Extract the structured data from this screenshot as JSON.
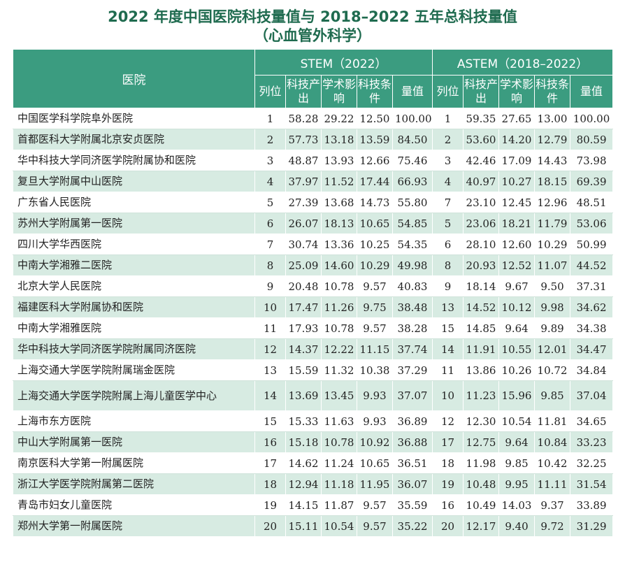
{
  "title": {
    "line1": "2022 年度中国医院科技量值与 2018–2022 五年总科技量值",
    "line2": "（心血管外科学）"
  },
  "header": {
    "hospital": "医院",
    "stem_group": "STEM（2022）",
    "astem_group": "ASTEM（2018–2022）",
    "cols": [
      "列位",
      "科技产出",
      "学术影响",
      "科技条件",
      "量值"
    ]
  },
  "colors": {
    "header_bg": "#3b9c80",
    "stripe": "#d7ebe2",
    "title": "#1f6b4f"
  },
  "rows": [
    {
      "name": "中国医学科学院阜外医院",
      "s": [
        "1",
        "58.28",
        "29.22",
        "12.50",
        "100.00"
      ],
      "a": [
        "1",
        "59.35",
        "27.65",
        "13.00",
        "100.00"
      ]
    },
    {
      "name": "首都医科大学附属北京安贞医院",
      "s": [
        "2",
        "57.73",
        "13.18",
        "13.59",
        "84.50"
      ],
      "a": [
        "2",
        "53.60",
        "14.20",
        "12.79",
        "80.59"
      ]
    },
    {
      "name": "华中科技大学同济医学院附属协和医院",
      "s": [
        "3",
        "48.87",
        "13.93",
        "12.66",
        "75.46"
      ],
      "a": [
        "3",
        "42.46",
        "17.09",
        "14.43",
        "73.98"
      ]
    },
    {
      "name": "复旦大学附属中山医院",
      "s": [
        "4",
        "37.97",
        "11.52",
        "17.44",
        "66.93"
      ],
      "a": [
        "4",
        "40.97",
        "10.27",
        "18.15",
        "69.39"
      ]
    },
    {
      "name": "广东省人民医院",
      "s": [
        "5",
        "27.39",
        "13.68",
        "14.73",
        "55.80"
      ],
      "a": [
        "7",
        "23.10",
        "12.45",
        "12.96",
        "48.51"
      ]
    },
    {
      "name": "苏州大学附属第一医院",
      "s": [
        "6",
        "26.07",
        "18.13",
        "10.65",
        "54.85"
      ],
      "a": [
        "5",
        "23.06",
        "18.21",
        "11.79",
        "53.06"
      ]
    },
    {
      "name": "四川大学华西医院",
      "s": [
        "7",
        "30.74",
        "13.36",
        "10.25",
        "54.35"
      ],
      "a": [
        "6",
        "28.10",
        "12.60",
        "10.29",
        "50.99"
      ]
    },
    {
      "name": "中南大学湘雅二医院",
      "s": [
        "8",
        "25.09",
        "14.60",
        "10.29",
        "49.98"
      ],
      "a": [
        "8",
        "20.93",
        "12.52",
        "11.07",
        "44.52"
      ]
    },
    {
      "name": "北京大学人民医院",
      "s": [
        "9",
        "20.48",
        "10.78",
        "9.57",
        "40.83"
      ],
      "a": [
        "9",
        "18.14",
        "9.67",
        "9.50",
        "37.31"
      ]
    },
    {
      "name": "福建医科大学附属协和医院",
      "s": [
        "10",
        "17.47",
        "11.26",
        "9.75",
        "38.48"
      ],
      "a": [
        "13",
        "14.52",
        "10.12",
        "9.98",
        "34.62"
      ]
    },
    {
      "name": "中南大学湘雅医院",
      "s": [
        "11",
        "17.93",
        "10.78",
        "9.57",
        "38.28"
      ],
      "a": [
        "15",
        "14.85",
        "9.64",
        "9.89",
        "34.38"
      ]
    },
    {
      "name": "华中科技大学同济医学院附属同济医院",
      "s": [
        "12",
        "14.37",
        "12.22",
        "11.15",
        "37.74"
      ],
      "a": [
        "14",
        "11.91",
        "10.55",
        "12.01",
        "34.47"
      ]
    },
    {
      "name": "上海交通大学医学院附属瑞金医院",
      "s": [
        "13",
        "15.59",
        "11.32",
        "10.38",
        "37.29"
      ],
      "a": [
        "11",
        "13.86",
        "10.26",
        "10.72",
        "34.84"
      ]
    },
    {
      "name": "上海交通大学医学院附属上海儿童医学中心",
      "s": [
        "14",
        "13.69",
        "13.45",
        "9.93",
        "37.07"
      ],
      "a": [
        "10",
        "11.23",
        "15.96",
        "9.85",
        "37.04"
      ]
    },
    {
      "name": "上海市东方医院",
      "s": [
        "15",
        "15.33",
        "11.63",
        "9.93",
        "36.89"
      ],
      "a": [
        "12",
        "12.30",
        "10.54",
        "11.81",
        "34.65"
      ]
    },
    {
      "name": "中山大学附属第一医院",
      "s": [
        "16",
        "15.18",
        "10.78",
        "10.92",
        "36.88"
      ],
      "a": [
        "17",
        "12.75",
        "9.64",
        "10.84",
        "33.23"
      ]
    },
    {
      "name": "南京医科大学第一附属医院",
      "s": [
        "17",
        "14.62",
        "11.24",
        "10.65",
        "36.51"
      ],
      "a": [
        "18",
        "11.98",
        "9.85",
        "10.42",
        "32.25"
      ]
    },
    {
      "name": "浙江大学医学院附属第二医院",
      "s": [
        "18",
        "12.94",
        "11.18",
        "11.95",
        "36.07"
      ],
      "a": [
        "19",
        "10.48",
        "9.95",
        "11.11",
        "31.54"
      ]
    },
    {
      "name": "青岛市妇女儿童医院",
      "s": [
        "19",
        "14.15",
        "11.87",
        "9.57",
        "35.59"
      ],
      "a": [
        "16",
        "10.49",
        "14.03",
        "9.37",
        "33.89"
      ]
    },
    {
      "name": "郑州大学第一附属医院",
      "s": [
        "20",
        "15.11",
        "10.54",
        "9.57",
        "35.22"
      ],
      "a": [
        "20",
        "12.17",
        "9.40",
        "9.72",
        "31.29"
      ]
    }
  ]
}
